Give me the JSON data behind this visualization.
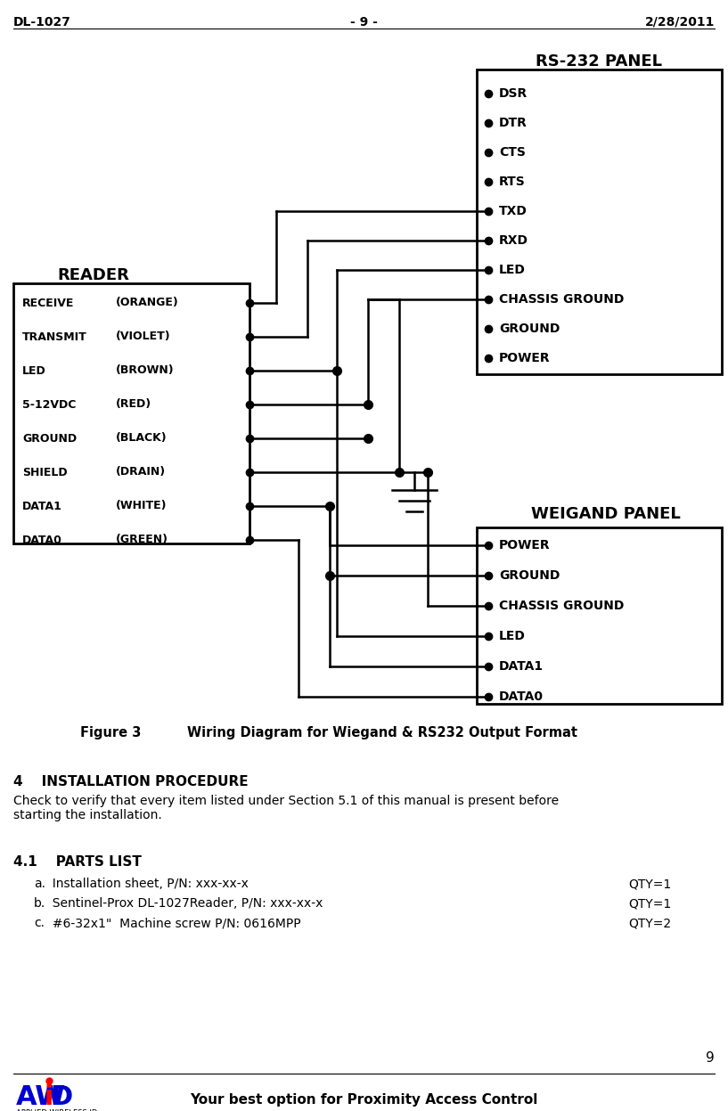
{
  "header_left": "DL-1027",
  "header_center": "- 9 -",
  "header_right": "2/28/2011",
  "footer_center": "Your best option for Proximity Access Control",
  "footer_page": "9",
  "figure_caption_num": "Figure 3",
  "figure_caption_text": "Wiring Diagram for Wiegand & RS232 Output Format",
  "reader_label": "READER",
  "rs232_label": "RS-232 PANEL",
  "weigand_label": "WEIGAND PANEL",
  "reader_pins": [
    [
      "RECEIVE",
      "(ORANGE)"
    ],
    [
      "TRANSMIT",
      "(VIOLET)"
    ],
    [
      "LED",
      "(BROWN)"
    ],
    [
      "5-12VDC",
      "(RED)"
    ],
    [
      "GROUND",
      "(BLACK)"
    ],
    [
      "SHIELD",
      "(DRAIN)"
    ],
    [
      "DATA1",
      "(WHITE)"
    ],
    [
      "DATA0",
      "(GREEN)"
    ]
  ],
  "rs232_pins": [
    "DSR",
    "DTR",
    "CTS",
    "RTS",
    "TXD",
    "RXD",
    "LED",
    "CHASSIS GROUND",
    "GROUND",
    "POWER"
  ],
  "weigand_pins": [
    "POWER",
    "GROUND",
    "CHASSIS GROUND",
    "LED",
    "DATA1",
    "DATA0"
  ],
  "section4_title": "4    INSTALLATION PROCEDURE",
  "section4_body": "Check to verify that every item listed under Section 5.1 of this manual is present before\nstarting the installation.",
  "section41_title": "4.1    PARTS LIST",
  "parts": [
    [
      "a.",
      "  Installation sheet, P/N: xxx-xx-x",
      "QTY=1"
    ],
    [
      "b.",
      "  Sentinel-Prox DL-1027Reader, P/N: xxx-xx-x",
      "QTY=1"
    ],
    [
      "c.",
      "  #6-32x1\"  Machine screw P/N: 0616MPP",
      "QTY=2"
    ]
  ]
}
